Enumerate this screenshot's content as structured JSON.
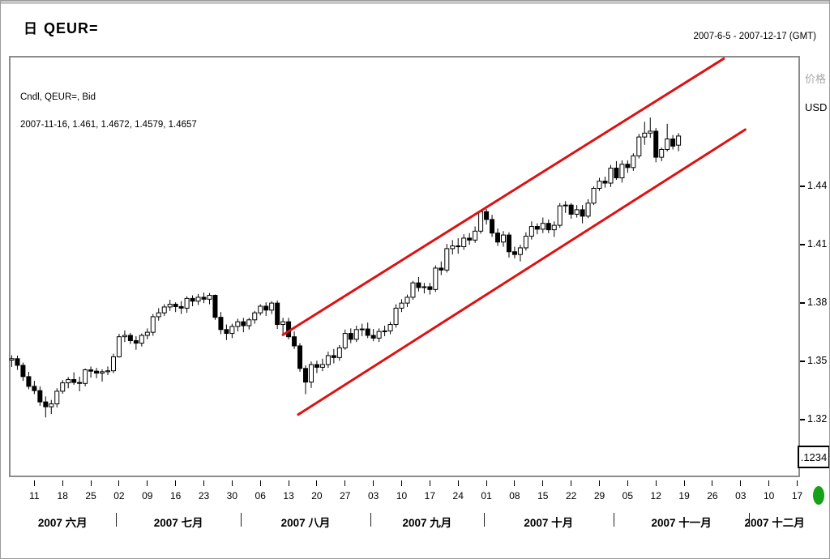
{
  "header": {
    "interval_label": "日",
    "title": "QEUR=",
    "date_range": "2007-6-5 - 2007-12-17 (GMT)"
  },
  "legend": {
    "series": "Cndl, QEUR=, Bid",
    "ohlc": "2007-11-16, 1.461, 1.4672, 1.4579, 1.4657"
  },
  "price_axis": {
    "label": "价格",
    "unit": "USD",
    "decimals_box": ".1234"
  },
  "colors": {
    "up_fill": "#ffffff",
    "down_fill": "#000000",
    "outline": "#000000",
    "channel": "#dd1111",
    "frame": "#8c8c8c",
    "price_label_gray": "#a8a8a8",
    "indicator_green": "#18a018"
  },
  "chart_data": {
    "type": "candlestick",
    "title": "QEUR= Daily, Bid",
    "ylabel": "价格 USD",
    "ylim": [
      1.2903,
      1.5069
    ],
    "y_ticks": [
      1.44,
      1.41,
      1.38,
      1.35,
      1.32
    ],
    "grid": false,
    "x_slots": 140,
    "x_week_tick_first_slot": 4,
    "x_week_tick_step": 5,
    "x_week_tick_labels": [
      "11",
      "18",
      "25",
      "02",
      "09",
      "16",
      "23",
      "30",
      "06",
      "13",
      "20",
      "27",
      "03",
      "10",
      "17",
      "24",
      "01",
      "08",
      "15",
      "22",
      "29",
      "05",
      "12",
      "19",
      "26",
      "03",
      "10",
      "17"
    ],
    "months": [
      {
        "label": "2007 六月",
        "start_slot": 0,
        "end_slot": 18
      },
      {
        "label": "2007 七月",
        "start_slot": 19,
        "end_slot": 40
      },
      {
        "label": "2007 八月",
        "start_slot": 41,
        "end_slot": 63
      },
      {
        "label": "2007 九月",
        "start_slot": 64,
        "end_slot": 83
      },
      {
        "label": "2007 十月",
        "start_slot": 84,
        "end_slot": 106
      },
      {
        "label": "2007 十一月",
        "start_slot": 107,
        "end_slot": 130
      },
      {
        "label": "2007 十二月",
        "start_slot": 131,
        "end_slot": 139
      }
    ],
    "candles": [
      [
        "2007-06-05",
        1.3505,
        1.353,
        1.347,
        1.3512
      ],
      [
        "2007-06-06",
        1.3512,
        1.3528,
        1.3455,
        1.3478
      ],
      [
        "2007-06-07",
        1.3478,
        1.3492,
        1.3398,
        1.342
      ],
      [
        "2007-06-08",
        1.342,
        1.3445,
        1.3355,
        1.337
      ],
      [
        "2007-06-11",
        1.337,
        1.3398,
        1.333,
        1.3348
      ],
      [
        "2007-06-12",
        1.3348,
        1.337,
        1.327,
        1.329
      ],
      [
        "2007-06-13",
        1.329,
        1.3318,
        1.321,
        1.3265
      ],
      [
        "2007-06-14",
        1.3265,
        1.33,
        1.3228,
        1.328
      ],
      [
        "2007-06-15",
        1.328,
        1.336,
        1.3262,
        1.3345
      ],
      [
        "2007-06-18",
        1.3345,
        1.3402,
        1.3332,
        1.3388
      ],
      [
        "2007-06-19",
        1.3388,
        1.3418,
        1.336,
        1.3405
      ],
      [
        "2007-06-20",
        1.3405,
        1.3442,
        1.3378,
        1.339
      ],
      [
        "2007-06-21",
        1.339,
        1.342,
        1.3345,
        1.3385
      ],
      [
        "2007-06-22",
        1.3385,
        1.3462,
        1.337,
        1.3455
      ],
      [
        "2007-06-25",
        1.3455,
        1.3472,
        1.3415,
        1.3448
      ],
      [
        "2007-06-26",
        1.3448,
        1.3465,
        1.3412,
        1.3438
      ],
      [
        "2007-06-27",
        1.3438,
        1.3458,
        1.3395,
        1.3445
      ],
      [
        "2007-06-28",
        1.3445,
        1.3472,
        1.3428,
        1.345
      ],
      [
        "2007-06-29",
        1.345,
        1.3538,
        1.3438,
        1.3522
      ],
      [
        "2007-07-02",
        1.3522,
        1.364,
        1.3518,
        1.3625
      ],
      [
        "2007-07-03",
        1.3625,
        1.3658,
        1.3598,
        1.3632
      ],
      [
        "2007-07-04",
        1.3632,
        1.3645,
        1.3588,
        1.3605
      ],
      [
        "2007-07-05",
        1.3605,
        1.3628,
        1.3558,
        1.3592
      ],
      [
        "2007-07-06",
        1.3592,
        1.3642,
        1.3575,
        1.3632
      ],
      [
        "2007-07-09",
        1.3632,
        1.3668,
        1.3612,
        1.3648
      ],
      [
        "2007-07-10",
        1.3648,
        1.3742,
        1.363,
        1.3728
      ],
      [
        "2007-07-11",
        1.3728,
        1.3772,
        1.3708,
        1.3748
      ],
      [
        "2007-07-12",
        1.3748,
        1.3792,
        1.3732,
        1.3778
      ],
      [
        "2007-07-13",
        1.3778,
        1.3815,
        1.3758,
        1.3792
      ],
      [
        "2007-07-16",
        1.3792,
        1.3802,
        1.3752,
        1.378
      ],
      [
        "2007-07-17",
        1.378,
        1.3808,
        1.3742,
        1.3772
      ],
      [
        "2007-07-18",
        1.3772,
        1.3833,
        1.3748,
        1.3822
      ],
      [
        "2007-07-19",
        1.3822,
        1.3838,
        1.3782,
        1.3808
      ],
      [
        "2007-07-20",
        1.3808,
        1.3845,
        1.3788,
        1.3828
      ],
      [
        "2007-07-23",
        1.3828,
        1.3852,
        1.3798,
        1.3818
      ],
      [
        "2007-07-24",
        1.3818,
        1.385,
        1.3792,
        1.3838
      ],
      [
        "2007-07-25",
        1.3838,
        1.3842,
        1.3712,
        1.3725
      ],
      [
        "2007-07-26",
        1.3725,
        1.3752,
        1.3638,
        1.3662
      ],
      [
        "2007-07-27",
        1.3662,
        1.3688,
        1.3608,
        1.3642
      ],
      [
        "2007-07-30",
        1.3642,
        1.3692,
        1.3618,
        1.3678
      ],
      [
        "2007-07-31",
        1.3678,
        1.3718,
        1.3652,
        1.3702
      ],
      [
        "2007-08-01",
        1.3702,
        1.3722,
        1.3648,
        1.3682
      ],
      [
        "2007-08-02",
        1.3682,
        1.3722,
        1.3662,
        1.3712
      ],
      [
        "2007-08-03",
        1.3712,
        1.3758,
        1.3692,
        1.3748
      ],
      [
        "2007-08-06",
        1.3748,
        1.3792,
        1.3735,
        1.3782
      ],
      [
        "2007-08-07",
        1.3782,
        1.3802,
        1.3732,
        1.3762
      ],
      [
        "2007-08-08",
        1.3762,
        1.3808,
        1.3742,
        1.3798
      ],
      [
        "2007-08-09",
        1.3798,
        1.3812,
        1.3665,
        1.3688
      ],
      [
        "2007-08-10",
        1.3688,
        1.3722,
        1.3638,
        1.3702
      ],
      [
        "2007-08-13",
        1.3702,
        1.3722,
        1.3612,
        1.3625
      ],
      [
        "2007-08-14",
        1.3625,
        1.3652,
        1.3562,
        1.3578
      ],
      [
        "2007-08-15",
        1.3578,
        1.3592,
        1.3445,
        1.3462
      ],
      [
        "2007-08-16",
        1.3462,
        1.3478,
        1.333,
        1.3392
      ],
      [
        "2007-08-17",
        1.3392,
        1.3498,
        1.3362,
        1.3482
      ],
      [
        "2007-08-20",
        1.3482,
        1.3502,
        1.3438,
        1.3468
      ],
      [
        "2007-08-21",
        1.3468,
        1.3512,
        1.3448,
        1.3482
      ],
      [
        "2007-08-22",
        1.3482,
        1.3548,
        1.3465,
        1.3528
      ],
      [
        "2007-08-23",
        1.3528,
        1.3562,
        1.3488,
        1.3518
      ],
      [
        "2007-08-24",
        1.3518,
        1.3582,
        1.3502,
        1.3568
      ],
      [
        "2007-08-27",
        1.3568,
        1.3662,
        1.3558,
        1.3642
      ],
      [
        "2007-08-28",
        1.3642,
        1.3668,
        1.3592,
        1.3612
      ],
      [
        "2007-08-29",
        1.3612,
        1.3682,
        1.3598,
        1.3662
      ],
      [
        "2007-08-30",
        1.3662,
        1.3692,
        1.3628,
        1.3665
      ],
      [
        "2007-08-31",
        1.3665,
        1.3698,
        1.3618,
        1.3632
      ],
      [
        "2007-09-03",
        1.3632,
        1.3665,
        1.3602,
        1.3618
      ],
      [
        "2007-09-04",
        1.3618,
        1.3668,
        1.3598,
        1.3652
      ],
      [
        "2007-09-05",
        1.3652,
        1.3682,
        1.3628,
        1.3655
      ],
      [
        "2007-09-06",
        1.3655,
        1.3702,
        1.3638,
        1.3688
      ],
      [
        "2007-09-07",
        1.3688,
        1.3792,
        1.3672,
        1.3772
      ],
      [
        "2007-09-10",
        1.3772,
        1.3818,
        1.3752,
        1.3798
      ],
      [
        "2007-09-11",
        1.3798,
        1.3842,
        1.3778,
        1.3828
      ],
      [
        "2007-09-12",
        1.3828,
        1.3912,
        1.3815,
        1.3902
      ],
      [
        "2007-09-13",
        1.3902,
        1.3932,
        1.3858,
        1.3878
      ],
      [
        "2007-09-14",
        1.3878,
        1.3902,
        1.3848,
        1.3882
      ],
      [
        "2007-09-17",
        1.3882,
        1.3902,
        1.3842,
        1.3868
      ],
      [
        "2007-09-18",
        1.3868,
        1.3992,
        1.3855,
        1.3978
      ],
      [
        "2007-09-19",
        1.3978,
        1.4012,
        1.3942,
        1.3968
      ],
      [
        "2007-09-20",
        1.3968,
        1.4102,
        1.3955,
        1.4078
      ],
      [
        "2007-09-21",
        1.4078,
        1.4122,
        1.4048,
        1.4092
      ],
      [
        "2007-09-24",
        1.4092,
        1.4132,
        1.4052,
        1.4088
      ],
      [
        "2007-09-25",
        1.4088,
        1.4152,
        1.4072,
        1.4132
      ],
      [
        "2007-09-26",
        1.4132,
        1.4158,
        1.4098,
        1.4122
      ],
      [
        "2007-09-27",
        1.4122,
        1.4192,
        1.4108,
        1.4168
      ],
      [
        "2007-09-28",
        1.4168,
        1.4278,
        1.4155,
        1.4268
      ],
      [
        "2007-10-01",
        1.4268,
        1.4282,
        1.4202,
        1.4228
      ],
      [
        "2007-10-02",
        1.4228,
        1.4252,
        1.4138,
        1.4158
      ],
      [
        "2007-10-03",
        1.4158,
        1.4182,
        1.4092,
        1.4112
      ],
      [
        "2007-10-04",
        1.4112,
        1.4168,
        1.4088,
        1.4148
      ],
      [
        "2007-10-05",
        1.4148,
        1.4162,
        1.4032,
        1.4062
      ],
      [
        "2007-10-08",
        1.4062,
        1.4088,
        1.4028,
        1.4048
      ],
      [
        "2007-10-09",
        1.4048,
        1.4098,
        1.4012,
        1.4082
      ],
      [
        "2007-10-10",
        1.4082,
        1.4162,
        1.4068,
        1.4142
      ],
      [
        "2007-10-11",
        1.4142,
        1.4218,
        1.4125,
        1.4192
      ],
      [
        "2007-10-12",
        1.4192,
        1.4208,
        1.4152,
        1.4178
      ],
      [
        "2007-10-15",
        1.4178,
        1.4238,
        1.4158,
        1.4208
      ],
      [
        "2007-10-16",
        1.4208,
        1.4228,
        1.4158,
        1.4175
      ],
      [
        "2007-10-17",
        1.4175,
        1.4218,
        1.4138,
        1.4198
      ],
      [
        "2007-10-18",
        1.4198,
        1.4312,
        1.4185,
        1.4298
      ],
      [
        "2007-10-19",
        1.4298,
        1.4322,
        1.4262,
        1.4302
      ],
      [
        "2007-10-22",
        1.4302,
        1.4312,
        1.4232,
        1.4255
      ],
      [
        "2007-10-23",
        1.4255,
        1.4302,
        1.4238,
        1.4278
      ],
      [
        "2007-10-24",
        1.4278,
        1.4302,
        1.4208,
        1.4245
      ],
      [
        "2007-10-25",
        1.4245,
        1.4332,
        1.4235,
        1.4312
      ],
      [
        "2007-10-26",
        1.4312,
        1.4398,
        1.4302,
        1.4388
      ],
      [
        "2007-10-29",
        1.4388,
        1.4442,
        1.4375,
        1.4425
      ],
      [
        "2007-10-30",
        1.4425,
        1.4448,
        1.4392,
        1.4415
      ],
      [
        "2007-10-31",
        1.4415,
        1.4508,
        1.4395,
        1.4492
      ],
      [
        "2007-11-01",
        1.4492,
        1.4528,
        1.4432,
        1.4442
      ],
      [
        "2007-11-02",
        1.4442,
        1.4532,
        1.4418,
        1.4512
      ],
      [
        "2007-11-05",
        1.4512,
        1.4532,
        1.4468,
        1.4495
      ],
      [
        "2007-11-06",
        1.4495,
        1.4568,
        1.4478,
        1.4555
      ],
      [
        "2007-11-07",
        1.4555,
        1.4668,
        1.4542,
        1.4652
      ],
      [
        "2007-11-08",
        1.4652,
        1.473,
        1.4612,
        1.4672
      ],
      [
        "2007-11-09",
        1.4672,
        1.4752,
        1.4648,
        1.4682
      ],
      [
        "2007-11-12",
        1.4682,
        1.4698,
        1.4522,
        1.4548
      ],
      [
        "2007-11-13",
        1.4548,
        1.4598,
        1.4528,
        1.4588
      ],
      [
        "2007-11-14",
        1.4588,
        1.472,
        1.4578,
        1.4642
      ],
      [
        "2007-11-15",
        1.4642,
        1.4662,
        1.4588,
        1.4605
      ],
      [
        "2007-11-16",
        1.461,
        1.4672,
        1.4579,
        1.4657
      ]
    ],
    "trendlines": [
      {
        "name": "channel-upper",
        "x1_slot": 48.0,
        "price1": 1.3635,
        "x2_slot": 126.0,
        "price2": 1.5055
      },
      {
        "name": "channel-lower",
        "x1_slot": 50.7,
        "price1": 1.3225,
        "x2_slot": 129.8,
        "price2": 1.469
      }
    ]
  }
}
